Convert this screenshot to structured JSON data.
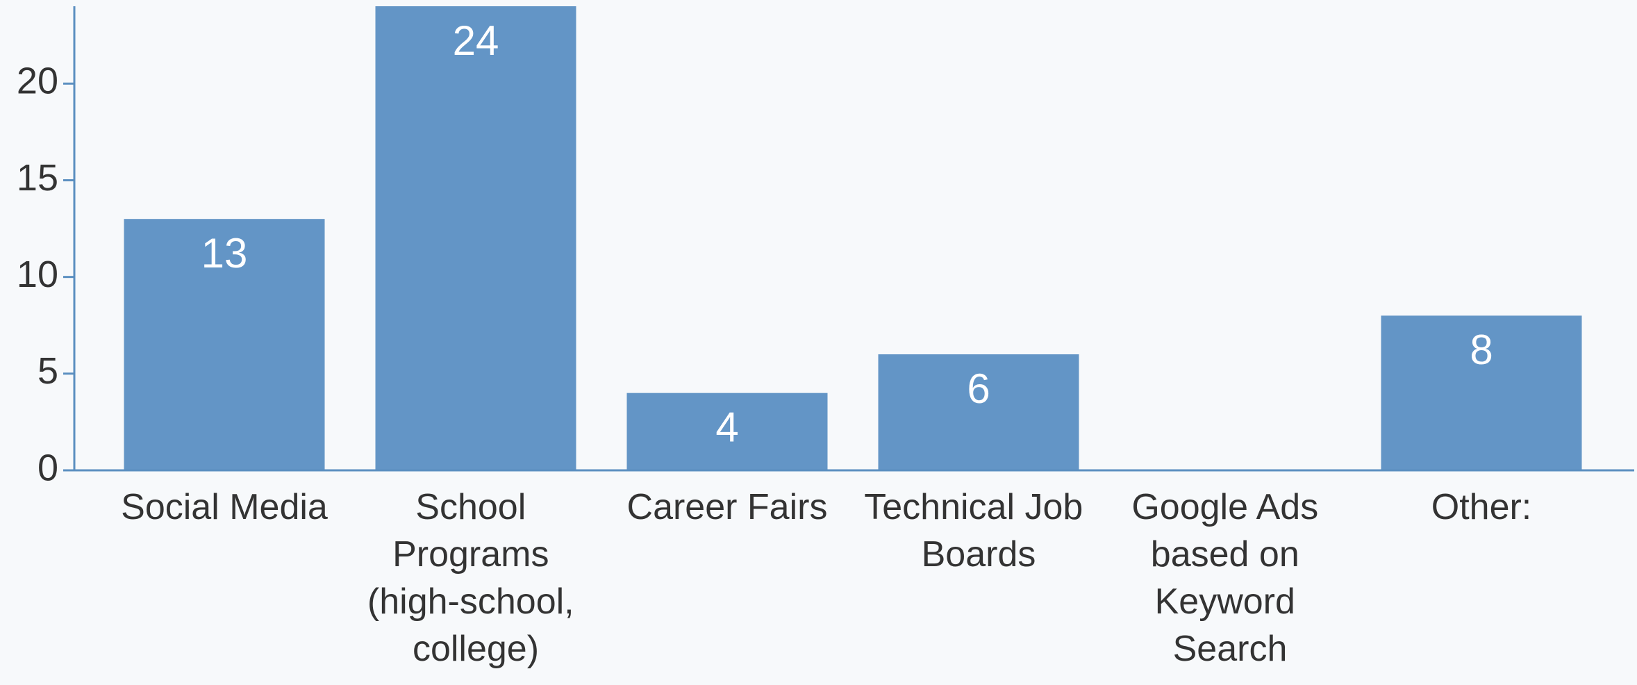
{
  "chart_data": {
    "type": "bar",
    "categories": [
      "Social Media",
      "School Programs (high-school, college)",
      "Career Fairs",
      "Technical Job Boards",
      "Google Ads based on Keyword Search",
      "Other:"
    ],
    "values": [
      13,
      24,
      4,
      6,
      0,
      8
    ],
    "color": "#6395c6",
    "ylim": [
      0,
      24
    ],
    "yticks": [
      0,
      5,
      10,
      15,
      20
    ],
    "grid": false
  }
}
